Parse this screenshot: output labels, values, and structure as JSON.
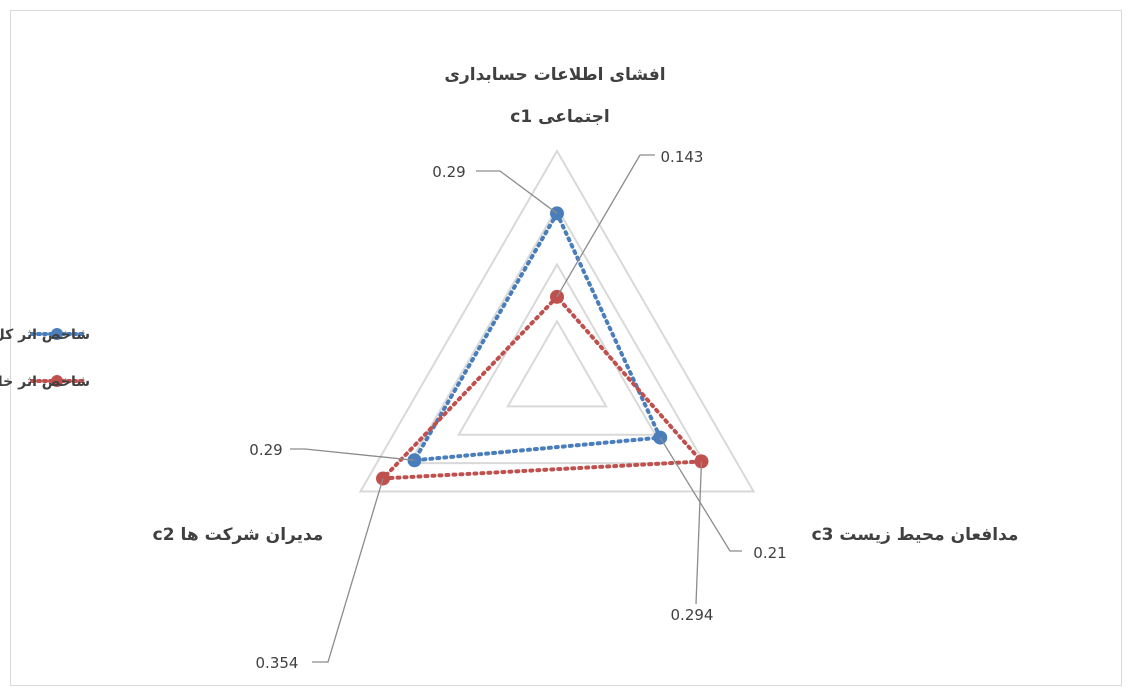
{
  "chart_data": {
    "type": "radar",
    "axes": [
      {
        "label_line1": "افشای اطلاعات حسابداری",
        "label_line2": "اجتماعی c1"
      },
      {
        "label": "مدیران شرکت ها c2"
      },
      {
        "label": "مدافعان محیط زیست c3"
      }
    ],
    "series": [
      {
        "name": "شاخص اثر کل",
        "color": "#4a7ebb",
        "values": [
          0.29,
          0.29,
          0.21
        ]
      },
      {
        "name": "شاخص اثر خالص",
        "color": "#c0504d",
        "values": [
          0.143,
          0.354,
          0.294
        ]
      }
    ],
    "data_labels": [
      "0.29",
      "0.143",
      "0.29",
      "0.354",
      "0.21",
      "0.294"
    ],
    "rmax": 0.4,
    "grid_levels": [
      0.1,
      0.2,
      0.3,
      0.4
    ],
    "grid": true,
    "legend_position": "left",
    "line_style": "dotted"
  }
}
